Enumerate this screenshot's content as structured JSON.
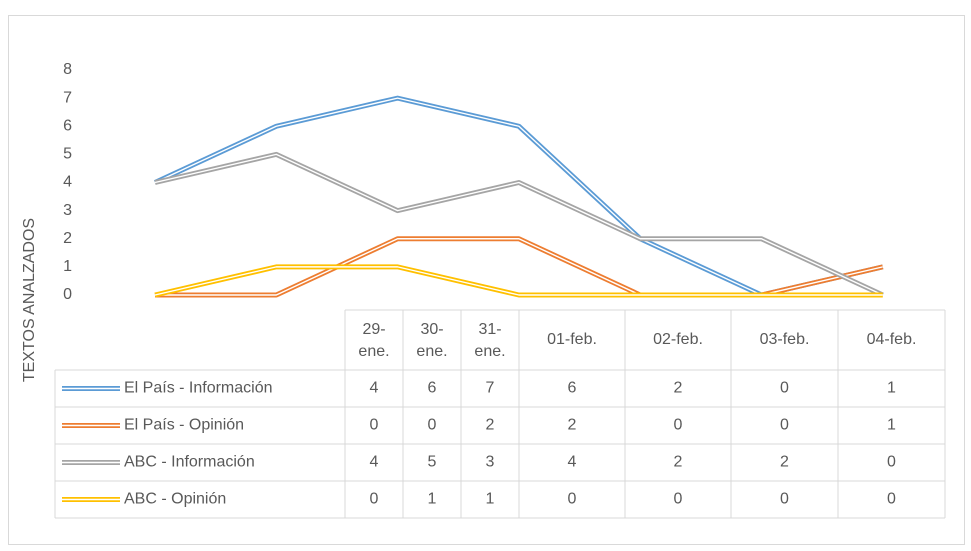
{
  "chart_data": {
    "type": "line",
    "y_label": "TEXTOS ANALZADOS",
    "categories": [
      "29-ene.",
      "30-ene.",
      "31-ene.",
      "01-feb.",
      "02-feb.",
      "03-feb.",
      "04-feb."
    ],
    "series": [
      {
        "name": "El País - Información",
        "color": "#5b9bd5",
        "values": [
          4,
          6,
          7,
          6,
          2,
          0,
          1
        ]
      },
      {
        "name": "El País - Opinión",
        "color": "#ed7d31",
        "values": [
          0,
          0,
          2,
          2,
          0,
          0,
          1
        ]
      },
      {
        "name": "ABC - Información",
        "color": "#a5a5a5",
        "values": [
          4,
          5,
          3,
          4,
          2,
          2,
          0
        ]
      },
      {
        "name": "ABC - Opinión",
        "color": "#ffc000",
        "values": [
          0,
          1,
          1,
          0,
          0,
          0,
          0
        ]
      }
    ],
    "ylim": [
      0,
      8
    ],
    "yticks": [
      0,
      1,
      2,
      3,
      4,
      5,
      6,
      7,
      8
    ],
    "grid": false,
    "data_table": true
  }
}
